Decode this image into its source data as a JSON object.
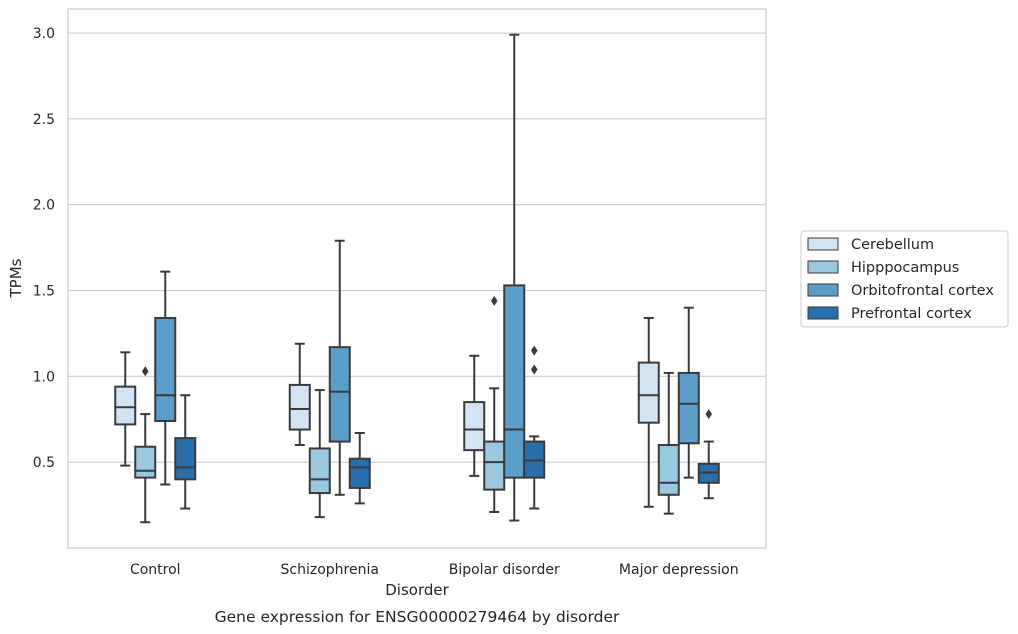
{
  "chart_data": {
    "type": "box",
    "title": "",
    "caption": "Gene expression for ENSG00000279464 by disorder",
    "xlabel": "Disorder",
    "ylabel": "TPMs",
    "ylim": [
      0,
      3.14
    ],
    "yticks": [
      "0.5",
      "1.0",
      "1.5",
      "2.0",
      "2.5",
      "3.0"
    ],
    "grid": "horizontal",
    "legend_position": "outside-right",
    "categories": [
      "Control",
      "Schizophrenia",
      "Bipolar disorder",
      "Major depression"
    ],
    "series": [
      {
        "name": "Cerebellum",
        "color": "#d2e3f3",
        "boxes": [
          {
            "whislo": 0.48,
            "q1": 0.72,
            "med": 0.82,
            "q3": 0.94,
            "whishi": 1.14,
            "fliers": []
          },
          {
            "whislo": 0.6,
            "q1": 0.69,
            "med": 0.81,
            "q3": 0.95,
            "whishi": 1.19,
            "fliers": []
          },
          {
            "whislo": 0.42,
            "q1": 0.57,
            "med": 0.69,
            "q3": 0.85,
            "whishi": 1.12,
            "fliers": []
          },
          {
            "whislo": 0.24,
            "q1": 0.73,
            "med": 0.89,
            "q3": 1.08,
            "whishi": 1.34,
            "fliers": []
          }
        ]
      },
      {
        "name": "Hipppocampus",
        "color": "#9ac8e0",
        "boxes": [
          {
            "whislo": 0.15,
            "q1": 0.41,
            "med": 0.45,
            "q3": 0.59,
            "whishi": 0.78,
            "fliers": [
              1.03
            ]
          },
          {
            "whislo": 0.18,
            "q1": 0.32,
            "med": 0.4,
            "q3": 0.58,
            "whishi": 0.92,
            "fliers": []
          },
          {
            "whislo": 0.21,
            "q1": 0.34,
            "med": 0.5,
            "q3": 0.62,
            "whishi": 0.93,
            "fliers": [
              1.44
            ]
          },
          {
            "whislo": 0.2,
            "q1": 0.31,
            "med": 0.38,
            "q3": 0.6,
            "whishi": 1.02,
            "fliers": []
          }
        ]
      },
      {
        "name": "Orbitofrontal cortex",
        "color": "#5a9ec9",
        "boxes": [
          {
            "whislo": 0.37,
            "q1": 0.74,
            "med": 0.89,
            "q3": 1.34,
            "whishi": 1.61,
            "fliers": []
          },
          {
            "whislo": 0.31,
            "q1": 0.62,
            "med": 0.91,
            "q3": 1.17,
            "whishi": 1.79,
            "fliers": []
          },
          {
            "whislo": 0.16,
            "q1": 0.41,
            "med": 0.69,
            "q3": 1.53,
            "whishi": 2.99,
            "fliers": []
          },
          {
            "whislo": 0.41,
            "q1": 0.61,
            "med": 0.84,
            "q3": 1.02,
            "whishi": 1.4,
            "fliers": []
          }
        ]
      },
      {
        "name": "Prefrontal cortex",
        "color": "#2a6fac",
        "boxes": [
          {
            "whislo": 0.23,
            "q1": 0.4,
            "med": 0.47,
            "q3": 0.64,
            "whishi": 0.89,
            "fliers": []
          },
          {
            "whislo": 0.26,
            "q1": 0.35,
            "med": 0.47,
            "q3": 0.52,
            "whishi": 0.67,
            "fliers": []
          },
          {
            "whislo": 0.23,
            "q1": 0.41,
            "med": 0.51,
            "q3": 0.62,
            "whishi": 0.65,
            "fliers": [
              1.04,
              1.15
            ]
          },
          {
            "whislo": 0.29,
            "q1": 0.38,
            "med": 0.44,
            "q3": 0.49,
            "whishi": 0.62,
            "fliers": [
              0.78
            ]
          }
        ]
      }
    ]
  }
}
